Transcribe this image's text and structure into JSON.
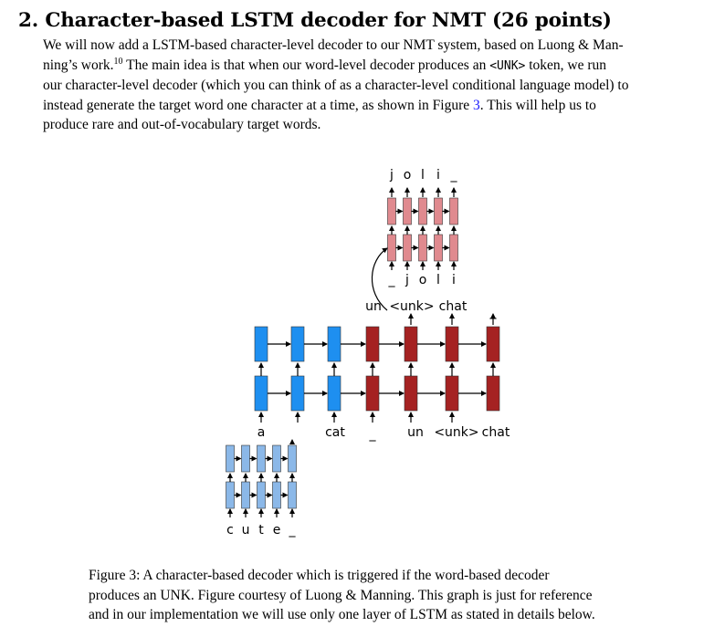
{
  "section": {
    "number": "2.",
    "title": "Character-based LSTM decoder for NMT (26 points)"
  },
  "paragraph": {
    "l1": "We will now add a LSTM-based character-level decoder to our NMT system, based on Luong & Man-",
    "l2_pre": "ning’s work.",
    "footnote": "10",
    "l2_post": " The main idea is that when our word-level decoder produces an ",
    "unk_token": "<UNK>",
    "l2_end": " token, we run",
    "l3": "our character-level decoder (which you can think of as a character-level conditional language model) to",
    "l4_pre": "instead generate the target word one character at a time, as shown in Figure ",
    "fig_ref": "3",
    "l4_post": ". This will help us to",
    "l5": "produce rare and out-of-vocabulary target words."
  },
  "figure": {
    "top_chars": [
      "j",
      "o",
      "l",
      "i",
      "_"
    ],
    "upper_input_chars": [
      "_",
      "j",
      "o",
      "l",
      "i"
    ],
    "mid_labels": [
      "un",
      "<unk>",
      "chat",
      "_"
    ],
    "word_inputs": [
      "a",
      "cat",
      "_",
      "un",
      "<unk>",
      "chat"
    ],
    "bottom_chars": [
      "c",
      "u",
      "t",
      "e",
      "_"
    ],
    "colors": {
      "encoder_word": "#1e8ff0",
      "decoder_word": "#a52222",
      "decoder_char": "#e08a8f",
      "encoder_char": "#8bb8e8",
      "arrow": "#000000"
    }
  },
  "caption": {
    "l1": "Figure 3: A character-based decoder which is triggered if the word-based decoder",
    "l2": "produces an UNK. Figure courtesy of Luong & Manning. This graph is just for reference",
    "l3": "and in our implementation we will use only one layer of LSTM as stated in details below."
  }
}
